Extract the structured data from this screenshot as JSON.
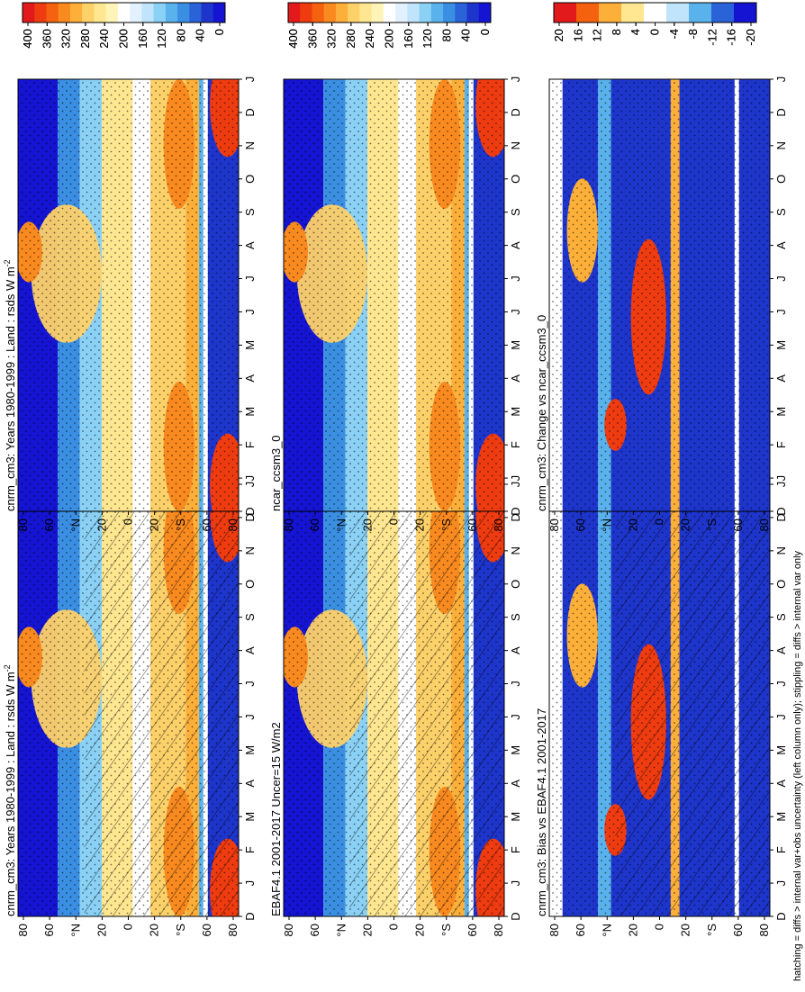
{
  "footer": "hatching = diffs > internal var+obs uncertainty (left column only); stippling = diffs > internal var only",
  "chart_data": [
    {
      "type": "heatmap",
      "title": "cnrm_cm3: Years 1980-1999 : Land : rsds W m",
      "title_sup": "-2",
      "x": [
        "D",
        "J",
        "F",
        "M",
        "A",
        "M",
        "J",
        "J",
        "A",
        "S",
        "O",
        "N",
        "D",
        "J"
      ],
      "y": [
        "80",
        "60",
        "°N",
        "20",
        "0",
        "20",
        "°S",
        "60",
        "80"
      ],
      "colorbar": [
        "400",
        "360",
        "320",
        "280",
        "240",
        "200",
        "160",
        "120",
        "80",
        "40",
        "0"
      ],
      "scale": "abs",
      "hatched": true,
      "stippled": true
    },
    {
      "type": "heatmap",
      "title": "EBAF4.1 2001-2017 Uncer=15 W/m2",
      "x": [
        "D",
        "J",
        "F",
        "M",
        "A",
        "M",
        "J",
        "J",
        "A",
        "S",
        "O",
        "N",
        "D",
        "J"
      ],
      "y": [
        "80",
        "60",
        "°N",
        "20",
        "0",
        "20",
        "°S",
        "60",
        "80"
      ],
      "colorbar": [
        "400",
        "360",
        "320",
        "280",
        "240",
        "200",
        "160",
        "120",
        "80",
        "40",
        "0"
      ],
      "scale": "abs",
      "hatched": true,
      "stippled": true
    },
    {
      "type": "heatmap",
      "title": "cnrm_cm3: Bias vs EBAF4.1 2001-2017",
      "x": [
        "D",
        "J",
        "F",
        "M",
        "A",
        "M",
        "J",
        "J",
        "A",
        "S",
        "O",
        "N",
        "D",
        "J"
      ],
      "y": [
        "80",
        "60",
        "°N",
        "20",
        "0",
        "20",
        "°S",
        "60",
        "80"
      ],
      "colorbar": [
        "20",
        "16",
        "12",
        "8",
        "4",
        "0",
        "-4",
        "-8",
        "-12",
        "-16",
        "-20"
      ],
      "scale": "diff",
      "hatched": true,
      "stippled": true
    },
    {
      "type": "heatmap",
      "title": "cnrm_cm3: Years 1980-1999 : Land : rsds W m",
      "title_sup": "-2",
      "x": [
        "D",
        "J",
        "F",
        "M",
        "A",
        "M",
        "J",
        "J",
        "A",
        "S",
        "O",
        "N",
        "D",
        "J"
      ],
      "y": [
        "80",
        "60",
        "°N",
        "20",
        "0",
        "20",
        "°S",
        "60",
        "80"
      ],
      "colorbar": [
        "400",
        "360",
        "320",
        "280",
        "240",
        "200",
        "160",
        "120",
        "80",
        "40",
        "0"
      ],
      "scale": "abs",
      "hatched": false,
      "stippled": true
    },
    {
      "type": "heatmap",
      "title": "ncar_ccsm3_0",
      "x": [
        "D",
        "J",
        "F",
        "M",
        "A",
        "M",
        "J",
        "J",
        "A",
        "S",
        "O",
        "N",
        "D",
        "J"
      ],
      "y": [
        "80",
        "60",
        "°N",
        "20",
        "0",
        "20",
        "°S",
        "60",
        "80"
      ],
      "colorbar": [
        "400",
        "360",
        "320",
        "280",
        "240",
        "200",
        "160",
        "120",
        "80",
        "40",
        "0"
      ],
      "scale": "abs",
      "hatched": false,
      "stippled": true
    },
    {
      "type": "heatmap",
      "title": "cnrm_cm3: Change vs ncar_ccsm3_0",
      "x": [
        "D",
        "J",
        "F",
        "M",
        "A",
        "M",
        "J",
        "J",
        "A",
        "S",
        "O",
        "N",
        "D",
        "J"
      ],
      "y": [
        "80",
        "60",
        "°N",
        "20",
        "0",
        "20",
        "°S",
        "60",
        "80"
      ],
      "colorbar": [
        "20",
        "16",
        "12",
        "8",
        "4",
        "0",
        "-4",
        "-8",
        "-12",
        "-16",
        "-20"
      ],
      "scale": "diff",
      "hatched": false,
      "stippled": true
    }
  ]
}
